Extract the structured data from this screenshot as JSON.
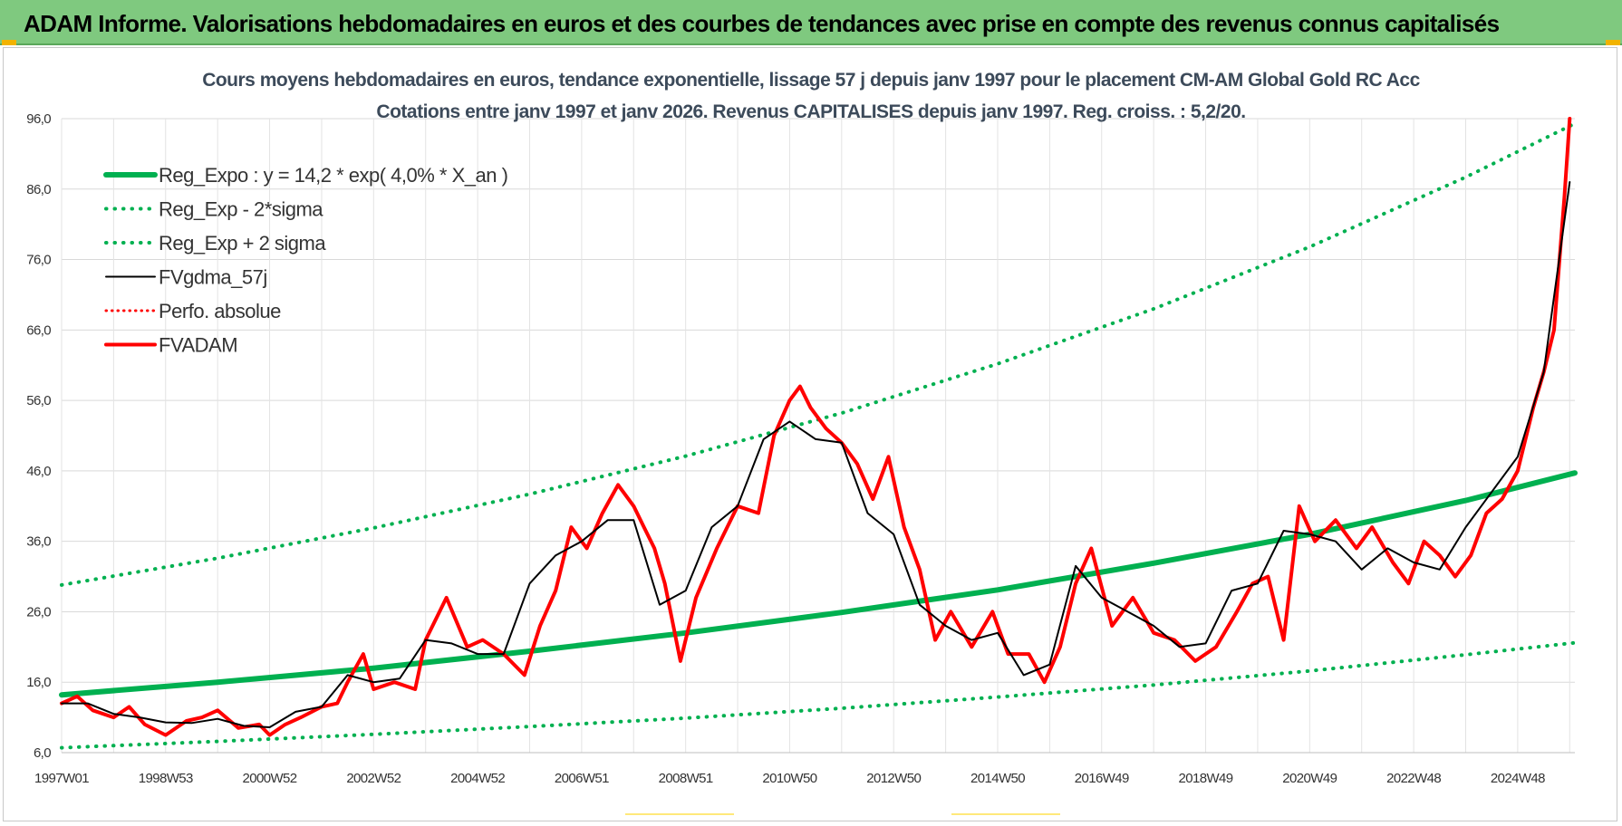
{
  "banner": {
    "title": "ADAM Informe. Valorisations hebdomadaires en euros et des courbes de tendances avec prise en compte des revenus connus capitalisés"
  },
  "colors": {
    "banner_bg": "#7fc97f",
    "trend": "#00b050",
    "price": "#ff0000",
    "smoothed": "#000000",
    "accent": "#f2b300"
  },
  "chart_data": {
    "type": "line",
    "title_lines": [
      "Cours moyens hebdomadaires en euros, tendance exponentielle, lissage 57 j depuis janv 1997 pour le placement CM-AM Global Gold RC Acc",
      "Cotations entre janv 1997 et janv 2026. Revenus CAPITALISES depuis janv 1997. Reg. croiss. : 5,2/20."
    ],
    "xlabel": "",
    "ylabel": "",
    "x_range": [
      1997.0,
      2026.1
    ],
    "ylim": [
      6.0,
      96.0
    ],
    "y_ticks": [
      "6,0",
      "16,0",
      "26,0",
      "36,0",
      "46,0",
      "56,0",
      "66,0",
      "76,0",
      "86,0",
      "96,0"
    ],
    "x_ticks": [
      "1997W01",
      "1998W53",
      "2000W52",
      "2002W52",
      "2004W52",
      "2006W51",
      "2008W51",
      "2010W50",
      "2012W50",
      "2014W50",
      "2016W49",
      "2018W49",
      "2020W49",
      "2022W48",
      "2024W48"
    ],
    "x_tick_years": [
      1997.0,
      1999.0,
      2001.0,
      2003.0,
      2005.0,
      2007.0,
      2009.0,
      2011.0,
      2013.0,
      2015.0,
      2017.0,
      2019.0,
      2021.0,
      2023.0,
      2025.0
    ],
    "grid": true,
    "legend_position": "top-left",
    "legend": [
      {
        "label": "Reg_Expo : y = 14,2 * exp( 4,0% *  X_an )",
        "color": "#00b050",
        "style": "solid-thick"
      },
      {
        "label": "Reg_Exp - 2*sigma",
        "color": "#00b050",
        "style": "dotted"
      },
      {
        "label": "Reg_Exp + 2 sigma",
        "color": "#00b050",
        "style": "dotted"
      },
      {
        "label": "FVgdma_57j",
        "color": "#000000",
        "style": "solid"
      },
      {
        "label": "Perfo. absolue",
        "color": "#ff0000",
        "style": "dotted"
      },
      {
        "label": "FVADAM",
        "color": "#ff0000",
        "style": "solid-thick"
      }
    ],
    "series": [
      {
        "name": "Reg_Expo : y = 14,2 * exp( 4,0% *  X_an )",
        "x": [
          1997.0,
          2000.0,
          2003.0,
          2006.0,
          2009.0,
          2012.0,
          2015.0,
          2018.0,
          2021.0,
          2024.0,
          2026.1
        ],
        "values": [
          14.2,
          16.0,
          18.0,
          20.4,
          23.0,
          25.9,
          29.1,
          32.9,
          37.0,
          41.8,
          45.7
        ]
      },
      {
        "name": "Reg_Exp - 2*sigma",
        "x": [
          1997.0,
          2000.0,
          2003.0,
          2006.0,
          2009.0,
          2012.0,
          2015.0,
          2018.0,
          2021.0,
          2024.0,
          2026.1
        ],
        "values": [
          6.7,
          7.6,
          8.6,
          9.7,
          10.9,
          12.3,
          13.9,
          15.6,
          17.6,
          19.9,
          21.6
        ]
      },
      {
        "name": "Reg_Exp + 2 sigma",
        "x": [
          1997.0,
          2000.0,
          2003.0,
          2006.0,
          2009.0,
          2012.0,
          2015.0,
          2018.0,
          2021.0,
          2024.0,
          2026.1
        ],
        "values": [
          29.8,
          33.6,
          37.9,
          42.7,
          48.1,
          54.2,
          61.2,
          69.0,
          77.8,
          87.7,
          95.3
        ]
      },
      {
        "name": "FVgdma_57j",
        "x": [
          1997.0,
          1997.5,
          1998.0,
          1998.5,
          1999.0,
          1999.5,
          2000.0,
          2000.5,
          2001.0,
          2001.5,
          2002.0,
          2002.5,
          2003.0,
          2003.5,
          2004.0,
          2004.5,
          2005.0,
          2005.5,
          2006.0,
          2006.5,
          2007.0,
          2007.5,
          2008.0,
          2008.5,
          2009.0,
          2009.5,
          2010.0,
          2010.5,
          2011.0,
          2011.5,
          2012.0,
          2012.5,
          2013.0,
          2013.5,
          2014.0,
          2014.5,
          2015.0,
          2015.5,
          2016.0,
          2016.5,
          2017.0,
          2017.5,
          2018.0,
          2018.5,
          2019.0,
          2019.5,
          2020.0,
          2020.5,
          2021.0,
          2021.5,
          2022.0,
          2022.5,
          2023.0,
          2023.5,
          2024.0,
          2024.5,
          2025.0,
          2025.5,
          2026.0
        ],
        "values": [
          13.0,
          13.0,
          11.5,
          11.0,
          10.3,
          10.2,
          10.8,
          9.8,
          9.6,
          11.8,
          12.5,
          17.0,
          16.0,
          16.5,
          22.0,
          21.5,
          20.0,
          20.0,
          30.0,
          34.0,
          36.0,
          39.0,
          39.0,
          27.0,
          29.0,
          38.0,
          41.0,
          50.5,
          53.0,
          50.5,
          50.0,
          40.0,
          37.0,
          27.0,
          24.0,
          22.0,
          23.0,
          17.0,
          18.5,
          32.5,
          28.0,
          26.0,
          24.0,
          21.0,
          21.5,
          29.0,
          30.0,
          37.5,
          37.0,
          36.0,
          32.0,
          35.0,
          33.0,
          32.0,
          38.0,
          43.0,
          48.0,
          60.0,
          87.0
        ]
      },
      {
        "name": "FVADAM",
        "x": [
          1997.0,
          1997.3,
          1997.6,
          1998.0,
          1998.3,
          1998.6,
          1999.0,
          1999.4,
          1999.7,
          2000.0,
          2000.4,
          2000.8,
          2001.0,
          2001.3,
          2001.6,
          2002.0,
          2002.3,
          2002.5,
          2002.8,
          2003.0,
          2003.4,
          2003.8,
          2004.0,
          2004.4,
          2004.8,
          2005.1,
          2005.5,
          2005.9,
          2006.2,
          2006.5,
          2006.8,
          2007.1,
          2007.4,
          2007.7,
          2008.0,
          2008.2,
          2008.4,
          2008.6,
          2008.9,
          2009.2,
          2009.6,
          2010.0,
          2010.4,
          2010.7,
          2011.0,
          2011.2,
          2011.4,
          2011.7,
          2012.0,
          2012.3,
          2012.6,
          2012.9,
          2013.2,
          2013.5,
          2013.8,
          2014.1,
          2014.5,
          2014.9,
          2015.2,
          2015.6,
          2015.9,
          2016.2,
          2016.5,
          2016.8,
          2017.2,
          2017.6,
          2018.0,
          2018.4,
          2018.8,
          2019.2,
          2019.6,
          2019.9,
          2020.2,
          2020.5,
          2020.8,
          2021.1,
          2021.5,
          2021.9,
          2022.2,
          2022.6,
          2022.9,
          2023.2,
          2023.5,
          2023.8,
          2024.1,
          2024.4,
          2024.7,
          2025.0,
          2025.3,
          2025.5,
          2025.7,
          2025.9,
          2026.0
        ],
        "values": [
          13.0,
          14.0,
          12.0,
          11.0,
          12.5,
          10.0,
          8.5,
          10.5,
          11.0,
          12.0,
          9.5,
          10.0,
          8.5,
          10.0,
          11.0,
          12.5,
          13.0,
          16.0,
          20.0,
          15.0,
          16.0,
          15.0,
          22.0,
          28.0,
          21.0,
          22.0,
          20.0,
          17.0,
          24.0,
          29.0,
          38.0,
          35.0,
          40.0,
          44.0,
          41.0,
          38.0,
          35.0,
          30.0,
          19.0,
          28.0,
          35.0,
          41.0,
          40.0,
          51.0,
          56.0,
          58.0,
          55.0,
          52.0,
          50.0,
          47.0,
          42.0,
          48.0,
          38.0,
          32.0,
          22.0,
          26.0,
          21.0,
          26.0,
          20.0,
          20.0,
          16.0,
          21.0,
          30.0,
          35.0,
          24.0,
          28.0,
          23.0,
          22.0,
          19.0,
          21.0,
          26.0,
          30.0,
          31.0,
          22.0,
          41.0,
          36.0,
          39.0,
          35.0,
          38.0,
          33.0,
          30.0,
          36.0,
          34.0,
          31.0,
          34.0,
          40.0,
          42.0,
          46.0,
          55.0,
          60.0,
          66.0,
          85.0,
          96.0
        ]
      }
    ]
  }
}
